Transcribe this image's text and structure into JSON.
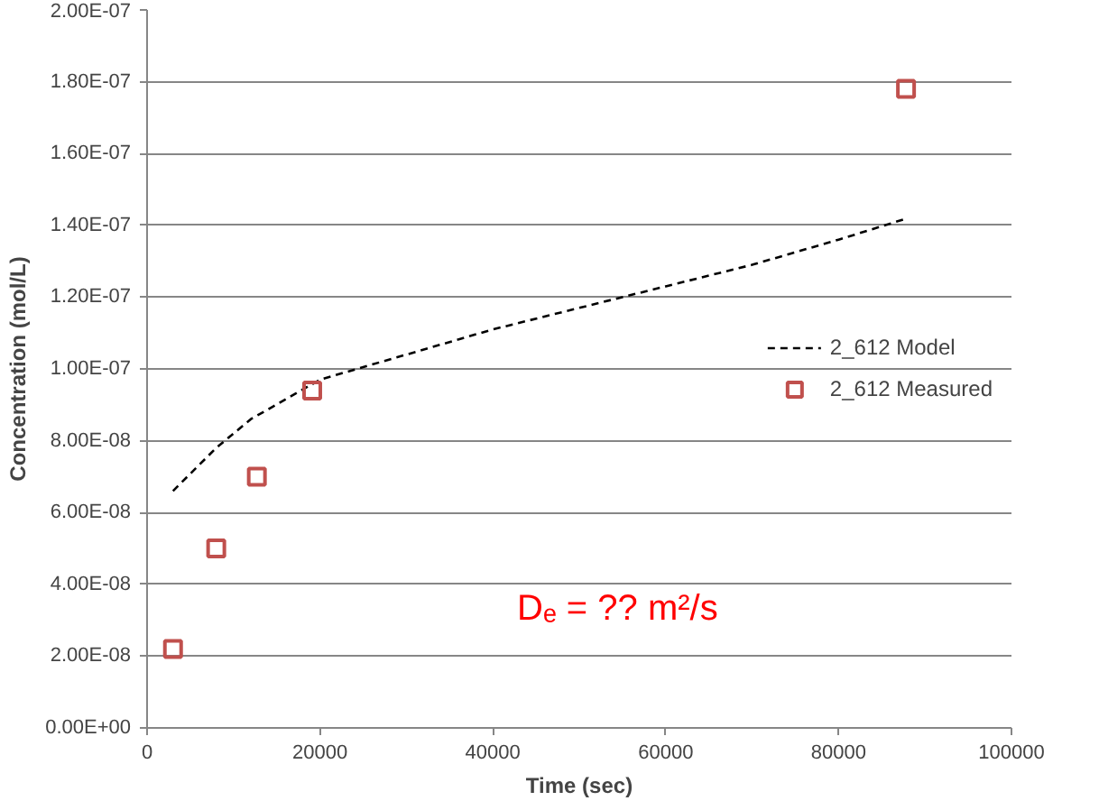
{
  "chart_data": {
    "type": "scatter",
    "xlabel": "Time (sec)",
    "ylabel": "Concentration (mol/L)",
    "xlim": [
      0,
      100000
    ],
    "xticks": [
      0,
      20000,
      40000,
      60000,
      80000,
      100000
    ],
    "ylim": [
      0,
      2e-07
    ],
    "yticks": [
      {
        "value": 0,
        "label": "0.00E+00"
      },
      {
        "value": 2e-08,
        "label": "2.00E-08"
      },
      {
        "value": 4e-08,
        "label": "4.00E-08"
      },
      {
        "value": 6e-08,
        "label": "6.00E-08"
      },
      {
        "value": 8e-08,
        "label": "8.00E-08"
      },
      {
        "value": 1e-07,
        "label": "1.00E-07"
      },
      {
        "value": 1.2e-07,
        "label": "1.20E-07"
      },
      {
        "value": 1.4e-07,
        "label": "1.40E-07"
      },
      {
        "value": 1.6e-07,
        "label": "1.60E-07"
      },
      {
        "value": 1.8e-07,
        "label": "1.80E-07"
      },
      {
        "value": 2e-07,
        "label": "2.00E-07"
      }
    ],
    "grid": "y",
    "legend": "right",
    "series": [
      {
        "name": "2_612 Model",
        "type": "line",
        "line_style": "dashed",
        "marker": "none",
        "color": "#000000",
        "x": [
          3000,
          8000,
          12000,
          20000,
          30000,
          40000,
          50000,
          60000,
          70000,
          80000,
          88000
        ],
        "values": [
          6.6e-08,
          7.8e-08,
          8.6e-08,
          9.7e-08,
          1.04e-07,
          1.11e-07,
          1.17e-07,
          1.23e-07,
          1.29e-07,
          1.36e-07,
          1.42e-07
        ]
      },
      {
        "name": "2_612 Measured",
        "marker": "square",
        "color": "#c0504d",
        "x": [
          3000,
          8000,
          12700,
          19100,
          87800
        ],
        "values": [
          2.2e-08,
          5e-08,
          7e-08,
          9.4e-08,
          1.78e-07
        ]
      }
    ],
    "annotations": [
      "Dₑ = ?? m²/s"
    ]
  }
}
